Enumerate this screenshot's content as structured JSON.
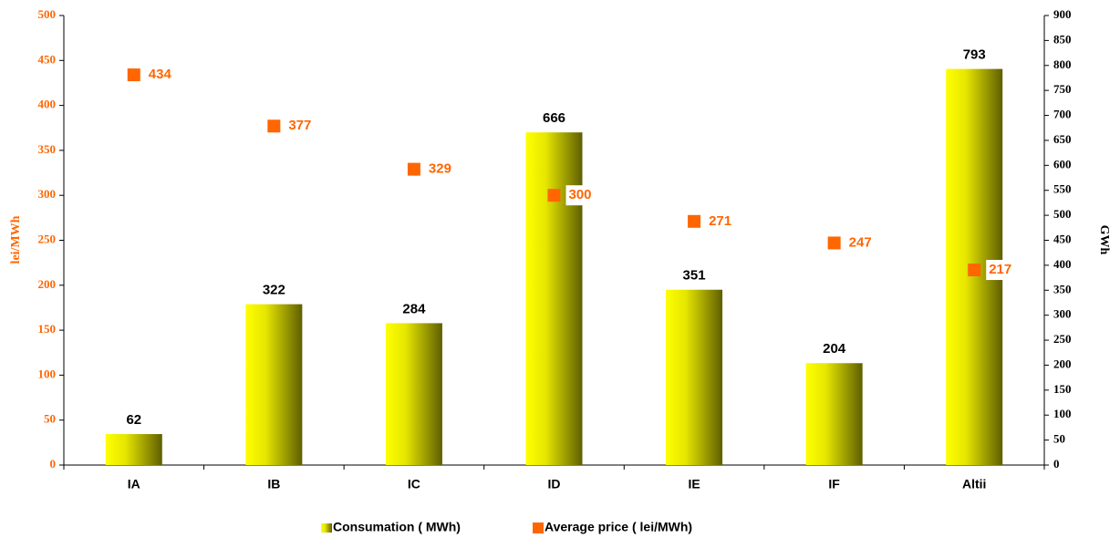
{
  "chart_data": {
    "type": "bar",
    "categories": [
      "IA",
      "IB",
      "IC",
      "ID",
      "IE",
      "IF",
      "Altii"
    ],
    "series": [
      {
        "name": "Consumation ( MWh)",
        "color": "#ffff00",
        "values": [
          62,
          322,
          284,
          666,
          351,
          204,
          793
        ],
        "axis": "y2"
      },
      {
        "name": "Average price ( lei/MWh)",
        "color": "#ff6600",
        "values": [
          434,
          377,
          329,
          300,
          271,
          247,
          217
        ],
        "axis": "y",
        "marker": "square"
      }
    ],
    "ylabel": "lei/MWh",
    "y2label": "GWh",
    "ylim": [
      0,
      500
    ],
    "yticks": [
      0,
      50,
      100,
      150,
      200,
      250,
      300,
      350,
      400,
      450,
      500
    ],
    "y2lim": [
      0,
      900
    ],
    "y2ticks": [
      0,
      50,
      100,
      150,
      200,
      250,
      300,
      350,
      400,
      450,
      500,
      550,
      600,
      650,
      700,
      750,
      800,
      850,
      900
    ],
    "legend": "bottom"
  }
}
